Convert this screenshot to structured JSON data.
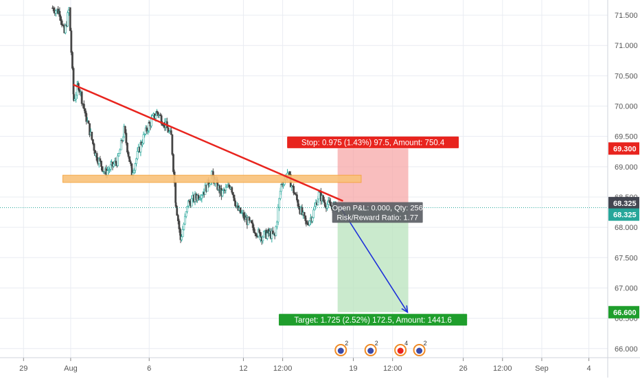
{
  "chart_data": {
    "type": "candlestick",
    "title": "",
    "ylim": [
      65.85,
      71.75
    ],
    "y_ticks": [
      "66.000",
      "66.500",
      "67.000",
      "67.500",
      "68.000",
      "68.500",
      "69.000",
      "69.500",
      "70.000",
      "70.500",
      "71.000",
      "71.500"
    ],
    "x_ticks": [
      {
        "label": "29",
        "x": 0.0
      },
      {
        "label": "Aug",
        "x": 3.0
      },
      {
        "label": "6",
        "x": 8.0
      },
      {
        "label": "12",
        "x": 14.0
      },
      {
        "label": "12:00",
        "x": 16.5
      },
      {
        "label": "19",
        "x": 21.0
      },
      {
        "label": "12:00",
        "x": 23.5
      },
      {
        "label": "26",
        "x": 28.0
      },
      {
        "label": "12:00",
        "x": 30.5
      },
      {
        "label": "Sep",
        "x": 33.0
      },
      {
        "label": "4",
        "x": 36.0
      }
    ],
    "xlim": [
      -1.5,
      37.2
    ],
    "candles": {
      "start_x": 1.85,
      "end_x": 20.0,
      "key_closes": [
        [
          1.85,
          71.62
        ],
        [
          2.3,
          71.55
        ],
        [
          2.6,
          71.2
        ],
        [
          2.9,
          71.6
        ],
        [
          3.2,
          70.1
        ],
        [
          3.5,
          70.35
        ],
        [
          4.0,
          69.8
        ],
        [
          4.6,
          69.2
        ],
        [
          5.2,
          68.9
        ],
        [
          5.6,
          69.0
        ],
        [
          6.0,
          69.1
        ],
        [
          6.4,
          69.6
        ],
        [
          6.9,
          68.9
        ],
        [
          7.5,
          69.4
        ],
        [
          8.0,
          69.7
        ],
        [
          8.5,
          69.9
        ],
        [
          9.0,
          69.7
        ],
        [
          9.4,
          69.5
        ],
        [
          9.7,
          68.4
        ],
        [
          10.0,
          67.8
        ],
        [
          10.5,
          68.4
        ],
        [
          11.0,
          68.5
        ],
        [
          11.5,
          68.6
        ],
        [
          12.0,
          68.85
        ],
        [
          12.6,
          68.55
        ],
        [
          13.2,
          68.7
        ],
        [
          13.6,
          68.3
        ],
        [
          14.1,
          68.15
        ],
        [
          14.6,
          68.0
        ],
        [
          15.1,
          67.85
        ],
        [
          15.6,
          67.9
        ],
        [
          16.0,
          67.85
        ],
        [
          16.4,
          68.7
        ],
        [
          16.8,
          68.9
        ],
        [
          17.2,
          68.6
        ],
        [
          17.6,
          68.3
        ],
        [
          18.0,
          68.05
        ],
        [
          18.4,
          68.2
        ],
        [
          18.8,
          68.55
        ],
        [
          19.2,
          68.4
        ],
        [
          19.6,
          68.35
        ],
        [
          20.0,
          68.33
        ]
      ]
    },
    "trendline": {
      "x1": 3.2,
      "y1": 70.35,
      "x2": 20.3,
      "y2": 68.44,
      "color": "#e8241e"
    },
    "zone": {
      "x1": 2.5,
      "x2": 21.5,
      "y1": 68.74,
      "y2": 68.86,
      "fill": "#f9c27a",
      "stroke": "#f5a23a"
    },
    "position": {
      "x1": 20.0,
      "x2": 24.5,
      "entry": 68.325,
      "stop": 69.3,
      "target": 66.6,
      "stop_label": "Stop: 0.975 (1.43%) 97.5, Amount: 750.4",
      "target_label": "Target: 1.725 (2.52%) 172.5, Amount: 1441.6",
      "pnl_label": "Open P&L: 0.000, Qty: 256",
      "rr_label": "Risk/Reward Ratio: 1.77"
    },
    "projection": {
      "x1": 20.1,
      "y1": 68.36,
      "x2": 24.45,
      "y2": 66.6,
      "color": "#1c2fd9"
    },
    "price_badges": [
      {
        "value": "69.300",
        "price": 69.3,
        "color": "#e8241e"
      },
      {
        "value": "68.325",
        "price": 68.4,
        "color": "#434651"
      },
      {
        "value": "68.325",
        "price": 68.21,
        "color": "#26a69a"
      },
      {
        "value": "66.600",
        "price": 66.6,
        "color": "#1f9e2c"
      }
    ],
    "current_price": 68.325,
    "events": [
      {
        "x": 20.2,
        "count": "2"
      },
      {
        "x": 22.1,
        "count": "2"
      },
      {
        "x": 24.0,
        "count": "4"
      },
      {
        "x": 25.2,
        "count": "2"
      }
    ],
    "colors": {
      "up": "#26a69a",
      "down": "#ef5350",
      "candle": "#454545",
      "grid": "#e9ecf2",
      "axis_text": "#555555",
      "stop_zone": "#f7a3a3",
      "target_zone": "#b8e3bc"
    }
  }
}
